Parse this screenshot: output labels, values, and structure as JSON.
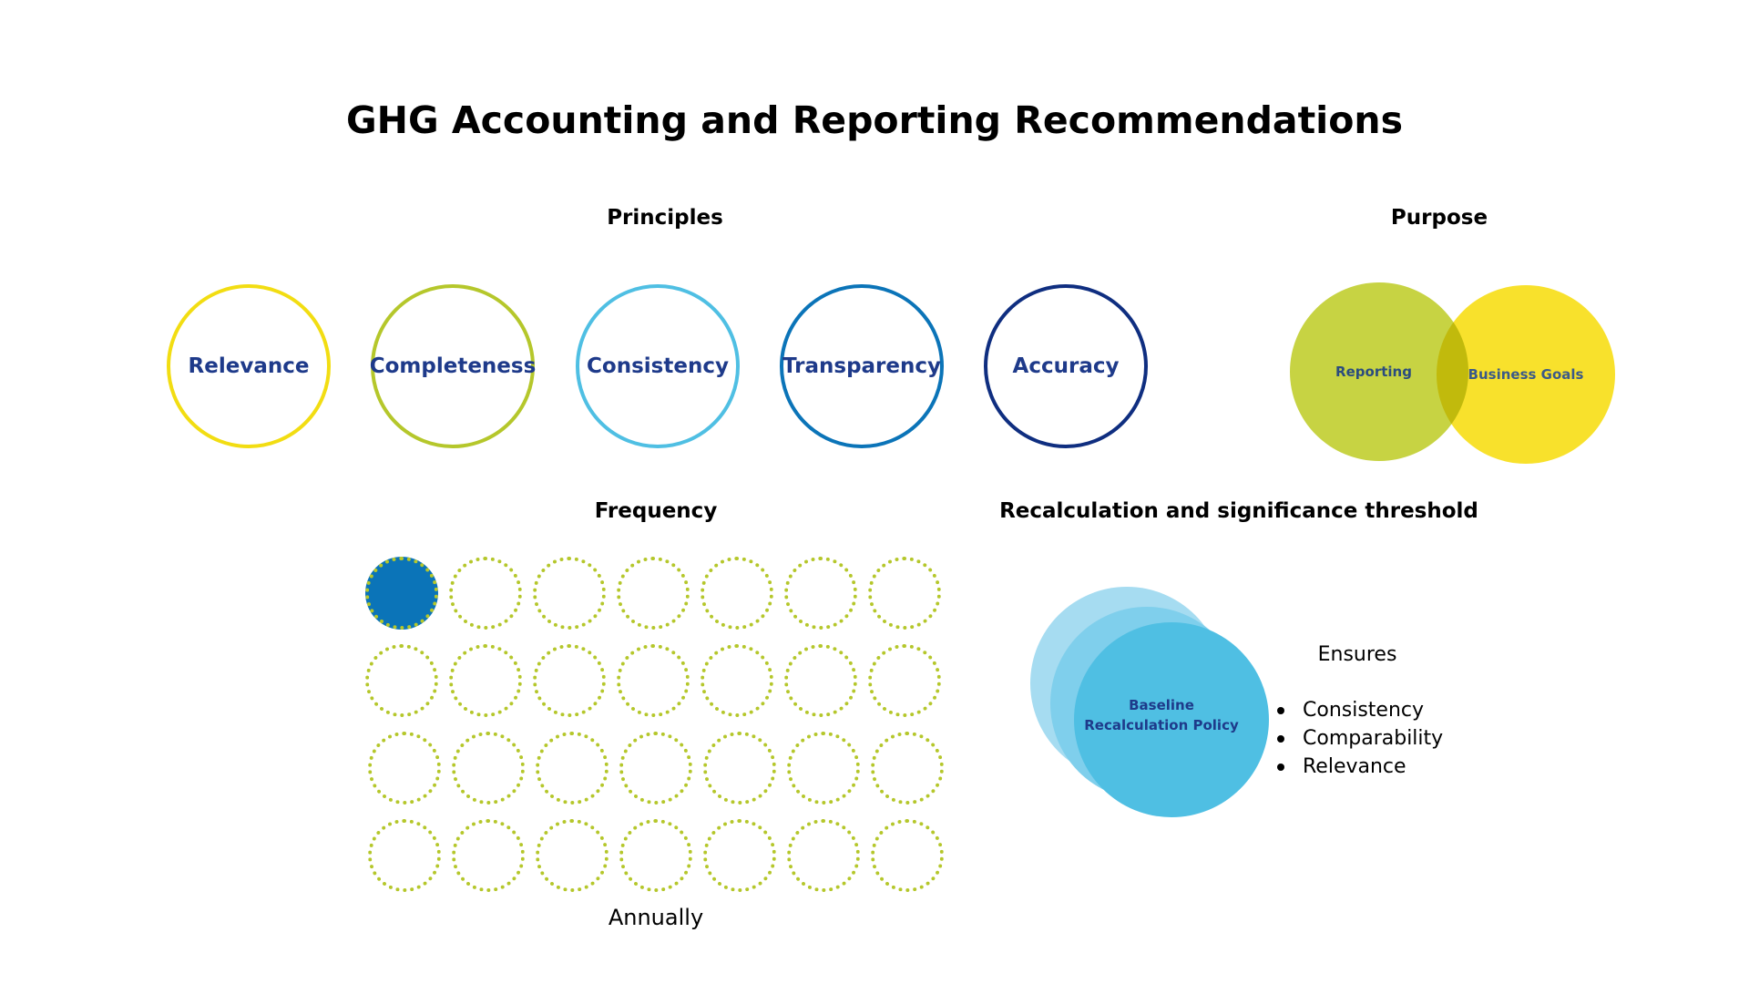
{
  "title": "GHG Accounting and Reporting Recommendations",
  "principles": {
    "heading": "Principles",
    "items": [
      {
        "label": "Relevance",
        "color": "#f2dd12"
      },
      {
        "label": "Completeness",
        "color": "#b5c72b"
      },
      {
        "label": "Consistency",
        "color": "#4fbfe3"
      },
      {
        "label": "Transparency",
        "color": "#0b74b8"
      },
      {
        "label": "Accuracy",
        "color": "#0f2e80"
      }
    ]
  },
  "purpose": {
    "heading": "Purpose",
    "left_label": "Reporting",
    "right_label": "Business Goals",
    "left_color": "#c7d343",
    "right_color": "#f8df1a"
  },
  "frequency": {
    "heading": "Frequency",
    "caption": "Annually",
    "rows": 4,
    "cols": 7,
    "filled_count": 1,
    "dot_color": "#b5c72b",
    "fill_color": "#0b74b8"
  },
  "recalculation": {
    "heading": "Recalculation and significance threshold",
    "circle_label_line1": "Baseline",
    "circle_label_line2": "Recalculation Policy",
    "colors": [
      "#a6dcf1",
      "#7fcfec",
      "#4fbfe3"
    ],
    "ensures_heading": "Ensures",
    "ensures_items": [
      "Consistency",
      "Comparability",
      "Relevance"
    ]
  }
}
